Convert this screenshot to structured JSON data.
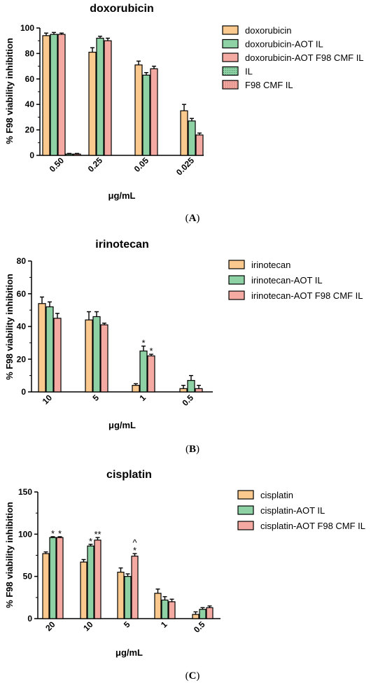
{
  "colors": {
    "orange": "#FBC88D",
    "green": "#8ED1A4",
    "pink": "#F5A9A3"
  },
  "panel_labels": [
    "A",
    "B",
    "C"
  ],
  "chart_data": [
    {
      "type": "bar",
      "title": "doxorubicin",
      "xlabel": "μg/mL",
      "ylabel": "% F98 viability inhibition",
      "ylim": [
        0,
        100
      ],
      "yticks": [
        0,
        20,
        40,
        60,
        80,
        100
      ],
      "categories": [
        "0.50",
        "0.25",
        "0.05",
        "0.025"
      ],
      "legend_position": "right",
      "series": [
        {
          "name": "doxorubicin",
          "color": "orange",
          "pattern": "solid",
          "values": [
            94,
            81,
            71,
            35
          ],
          "errors": [
            2,
            3.5,
            3,
            5
          ]
        },
        {
          "name": "doxorubicin-AOT IL",
          "color": "green",
          "pattern": "solid",
          "values": [
            95,
            92,
            63,
            27
          ],
          "errors": [
            1.5,
            1.5,
            2,
            2
          ]
        },
        {
          "name": "doxorubicin-AOT F98 CMF IL",
          "color": "pink",
          "pattern": "solid",
          "values": [
            95,
            90,
            68,
            16
          ],
          "errors": [
            1,
            2,
            2,
            1.5
          ]
        },
        {
          "name": "IL",
          "color": "green",
          "pattern": "dotted",
          "values": [
            1,
            null,
            null,
            null
          ],
          "errors": [
            0.5,
            null,
            null,
            null
          ]
        },
        {
          "name": "F98 CMF IL",
          "color": "pink",
          "pattern": "dotted",
          "values": [
            1,
            null,
            null,
            null
          ],
          "errors": [
            0.5,
            null,
            null,
            null
          ]
        }
      ],
      "annotations": []
    },
    {
      "type": "bar",
      "title": "irinotecan",
      "xlabel": "μg/mL",
      "ylabel": "% F98 viability inhibition",
      "ylim": [
        0,
        80
      ],
      "yticks": [
        0,
        20,
        40,
        60,
        80
      ],
      "categories": [
        "10",
        "5",
        "1",
        "0.5"
      ],
      "legend_position": "right",
      "series": [
        {
          "name": "irinotecan",
          "color": "orange",
          "pattern": "solid",
          "values": [
            54,
            44,
            4,
            2
          ],
          "errors": [
            4,
            5,
            1,
            2
          ]
        },
        {
          "name": "irinotecan-AOT IL",
          "color": "green",
          "pattern": "solid",
          "values": [
            52,
            46,
            25,
            7
          ],
          "errors": [
            3,
            3,
            3,
            3
          ]
        },
        {
          "name": "irinotecan-AOT F98 CMF IL",
          "color": "pink",
          "pattern": "solid",
          "values": [
            45,
            41,
            22,
            2
          ],
          "errors": [
            3,
            1,
            1,
            2
          ]
        }
      ],
      "annotations": [
        {
          "category": "1",
          "series": "irinotecan-AOT IL",
          "text": "*"
        },
        {
          "category": "1",
          "series": "irinotecan-AOT F98 CMF IL",
          "text": "*"
        }
      ]
    },
    {
      "type": "bar",
      "title": "cisplatin",
      "xlabel": "μg/mL",
      "ylabel": "% F98 viability inhibition",
      "ylim": [
        0,
        150
      ],
      "yticks": [
        0,
        50,
        100,
        150
      ],
      "categories": [
        "20",
        "10",
        "5",
        "1",
        "0.5"
      ],
      "legend_position": "right",
      "series": [
        {
          "name": "cisplatin",
          "color": "orange",
          "pattern": "solid",
          "values": [
            77,
            67,
            55,
            30,
            5
          ],
          "errors": [
            2,
            3,
            5,
            5,
            3
          ]
        },
        {
          "name": "cisplatin-AOT IL",
          "color": "green",
          "pattern": "solid",
          "values": [
            96,
            86,
            50,
            22,
            11
          ],
          "errors": [
            1,
            2,
            3,
            4,
            2
          ]
        },
        {
          "name": "cisplatin-AOT F98 CMF IL",
          "color": "pink",
          "pattern": "solid",
          "values": [
            96,
            93,
            74,
            20,
            13
          ],
          "errors": [
            1,
            3,
            3,
            3,
            2
          ]
        }
      ],
      "annotations": [
        {
          "category": "20",
          "series": "cisplatin-AOT IL",
          "text": "*"
        },
        {
          "category": "20",
          "series": "cisplatin-AOT F98 CMF IL",
          "text": "*"
        },
        {
          "category": "10",
          "series": "cisplatin-AOT IL",
          "text": "*"
        },
        {
          "category": "10",
          "series": "cisplatin-AOT F98 CMF IL",
          "text": "**"
        },
        {
          "category": "5",
          "series": "cisplatin-AOT F98 CMF IL",
          "text": "^\n*"
        }
      ]
    }
  ]
}
